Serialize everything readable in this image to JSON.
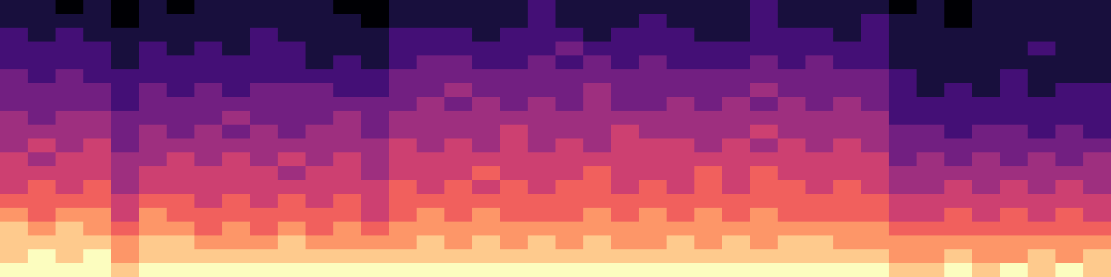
{
  "chart_data": {
    "type": "heatmap",
    "color": "magma",
    "tick_labels": false,
    "zlim": [
      0,
      9
    ],
    "values": [
      [
        1,
        1,
        0,
        1,
        0,
        1,
        0,
        1,
        1,
        1,
        1,
        1,
        0,
        0,
        1,
        1,
        1,
        1,
        1,
        2,
        1,
        1,
        1,
        1,
        1,
        1,
        1,
        2,
        1,
        1,
        1,
        1,
        0,
        1,
        0,
        1,
        1,
        1,
        1,
        1
      ],
      [
        1,
        1,
        1,
        1,
        0,
        1,
        1,
        1,
        1,
        1,
        1,
        1,
        1,
        0,
        1,
        1,
        1,
        1,
        1,
        2,
        1,
        1,
        1,
        2,
        1,
        1,
        1,
        2,
        1,
        1,
        1,
        2,
        1,
        1,
        0,
        1,
        1,
        1,
        1,
        1
      ],
      [
        2,
        1,
        2,
        1,
        1,
        1,
        1,
        1,
        1,
        2,
        1,
        1,
        1,
        1,
        2,
        2,
        2,
        1,
        2,
        2,
        2,
        1,
        2,
        2,
        2,
        1,
        1,
        2,
        2,
        2,
        1,
        2,
        1,
        1,
        1,
        1,
        1,
        1,
        1,
        1
      ],
      [
        2,
        2,
        2,
        2,
        1,
        2,
        1,
        2,
        1,
        2,
        2,
        1,
        1,
        1,
        2,
        2,
        2,
        2,
        2,
        2,
        3,
        2,
        2,
        2,
        2,
        2,
        2,
        2,
        2,
        2,
        2,
        2,
        1,
        1,
        1,
        1,
        1,
        2,
        1,
        1
      ],
      [
        2,
        2,
        2,
        2,
        1,
        2,
        2,
        2,
        2,
        2,
        2,
        1,
        2,
        1,
        2,
        3,
        3,
        2,
        2,
        3,
        2,
        3,
        2,
        3,
        2,
        2,
        2,
        3,
        2,
        3,
        2,
        2,
        1,
        1,
        1,
        1,
        1,
        1,
        1,
        1
      ],
      [
        3,
        2,
        3,
        2,
        2,
        2,
        2,
        2,
        2,
        2,
        2,
        2,
        2,
        2,
        3,
        3,
        3,
        3,
        3,
        3,
        3,
        3,
        3,
        3,
        3,
        3,
        3,
        3,
        3,
        3,
        3,
        3,
        2,
        1,
        1,
        1,
        2,
        1,
        1,
        1
      ],
      [
        3,
        3,
        3,
        3,
        2,
        3,
        2,
        3,
        2,
        3,
        3,
        3,
        2,
        2,
        3,
        3,
        4,
        3,
        3,
        3,
        3,
        4,
        3,
        3,
        3,
        3,
        3,
        4,
        3,
        3,
        3,
        3,
        2,
        1,
        2,
        1,
        2,
        1,
        2,
        2
      ],
      [
        3,
        3,
        3,
        3,
        2,
        3,
        3,
        3,
        3,
        3,
        3,
        3,
        3,
        3,
        3,
        4,
        3,
        4,
        3,
        4,
        3,
        4,
        3,
        3,
        4,
        3,
        4,
        3,
        4,
        3,
        4,
        3,
        2,
        2,
        2,
        2,
        2,
        2,
        2,
        2
      ],
      [
        4,
        3,
        4,
        4,
        3,
        3,
        3,
        3,
        4,
        3,
        3,
        3,
        4,
        3,
        4,
        4,
        4,
        4,
        4,
        4,
        4,
        4,
        4,
        4,
        4,
        4,
        4,
        4,
        4,
        4,
        4,
        4,
        2,
        2,
        2,
        2,
        2,
        2,
        2,
        2
      ],
      [
        4,
        4,
        4,
        4,
        3,
        4,
        3,
        4,
        3,
        4,
        3,
        4,
        4,
        3,
        4,
        4,
        4,
        4,
        5,
        4,
        4,
        4,
        5,
        4,
        4,
        4,
        4,
        5,
        4,
        4,
        4,
        4,
        3,
        3,
        2,
        3,
        3,
        2,
        3,
        2
      ],
      [
        4,
        5,
        4,
        5,
        3,
        4,
        4,
        4,
        4,
        4,
        4,
        4,
        4,
        4,
        5,
        4,
        5,
        4,
        5,
        4,
        5,
        4,
        5,
        5,
        5,
        4,
        5,
        4,
        5,
        4,
        5,
        4,
        3,
        3,
        3,
        3,
        3,
        3,
        3,
        3
      ],
      [
        5,
        4,
        5,
        5,
        4,
        4,
        5,
        4,
        5,
        4,
        5,
        4,
        5,
        4,
        5,
        5,
        5,
        5,
        5,
        5,
        5,
        5,
        5,
        5,
        5,
        5,
        5,
        5,
        5,
        5,
        5,
        5,
        3,
        4,
        3,
        4,
        3,
        4,
        3,
        4
      ],
      [
        5,
        5,
        5,
        5,
        4,
        5,
        5,
        5,
        5,
        5,
        4,
        5,
        5,
        4,
        5,
        5,
        5,
        6,
        5,
        5,
        5,
        6,
        5,
        5,
        5,
        6,
        5,
        6,
        5,
        5,
        5,
        5,
        4,
        4,
        4,
        4,
        4,
        4,
        4,
        4
      ],
      [
        5,
        6,
        5,
        6,
        4,
        5,
        5,
        5,
        5,
        5,
        5,
        5,
        5,
        5,
        6,
        5,
        6,
        5,
        6,
        5,
        6,
        6,
        5,
        6,
        5,
        6,
        5,
        6,
        6,
        5,
        6,
        5,
        4,
        4,
        5,
        4,
        5,
        4,
        5,
        4
      ],
      [
        6,
        6,
        6,
        6,
        5,
        6,
        6,
        5,
        6,
        5,
        6,
        5,
        6,
        5,
        6,
        6,
        6,
        6,
        6,
        6,
        6,
        6,
        6,
        6,
        6,
        6,
        6,
        6,
        6,
        6,
        6,
        6,
        5,
        5,
        5,
        5,
        5,
        5,
        5,
        5
      ],
      [
        7,
        6,
        7,
        7,
        5,
        7,
        6,
        6,
        6,
        6,
        6,
        6,
        6,
        5,
        6,
        7,
        6,
        7,
        6,
        6,
        6,
        7,
        6,
        7,
        6,
        7,
        6,
        7,
        6,
        6,
        6,
        6,
        5,
        5,
        6,
        5,
        6,
        5,
        6,
        5
      ],
      [
        8,
        7,
        8,
        7,
        6,
        7,
        7,
        6,
        7,
        6,
        7,
        6,
        7,
        6,
        7,
        7,
        7,
        7,
        7,
        7,
        7,
        7,
        7,
        7,
        7,
        7,
        7,
        7,
        7,
        7,
        7,
        7,
        6,
        6,
        6,
        6,
        6,
        6,
        6,
        6
      ],
      [
        8,
        8,
        8,
        8,
        7,
        8,
        8,
        7,
        7,
        7,
        8,
        7,
        7,
        7,
        7,
        8,
        7,
        8,
        7,
        8,
        7,
        8,
        7,
        7,
        8,
        7,
        8,
        7,
        8,
        8,
        7,
        7,
        7,
        7,
        7,
        7,
        7,
        7,
        7,
        7
      ],
      [
        8,
        9,
        8,
        9,
        7,
        8,
        8,
        8,
        8,
        8,
        8,
        8,
        8,
        8,
        8,
        8,
        8,
        8,
        8,
        8,
        8,
        8,
        8,
        8,
        8,
        8,
        8,
        8,
        8,
        8,
        8,
        8,
        7,
        7,
        8,
        7,
        7,
        8,
        7,
        8
      ],
      [
        9,
        9,
        9,
        9,
        8,
        9,
        9,
        9,
        9,
        9,
        9,
        9,
        9,
        9,
        9,
        9,
        9,
        9,
        9,
        9,
        9,
        9,
        9,
        9,
        9,
        9,
        9,
        9,
        9,
        9,
        9,
        9,
        8,
        8,
        9,
        8,
        9,
        8,
        9,
        8
      ]
    ]
  }
}
